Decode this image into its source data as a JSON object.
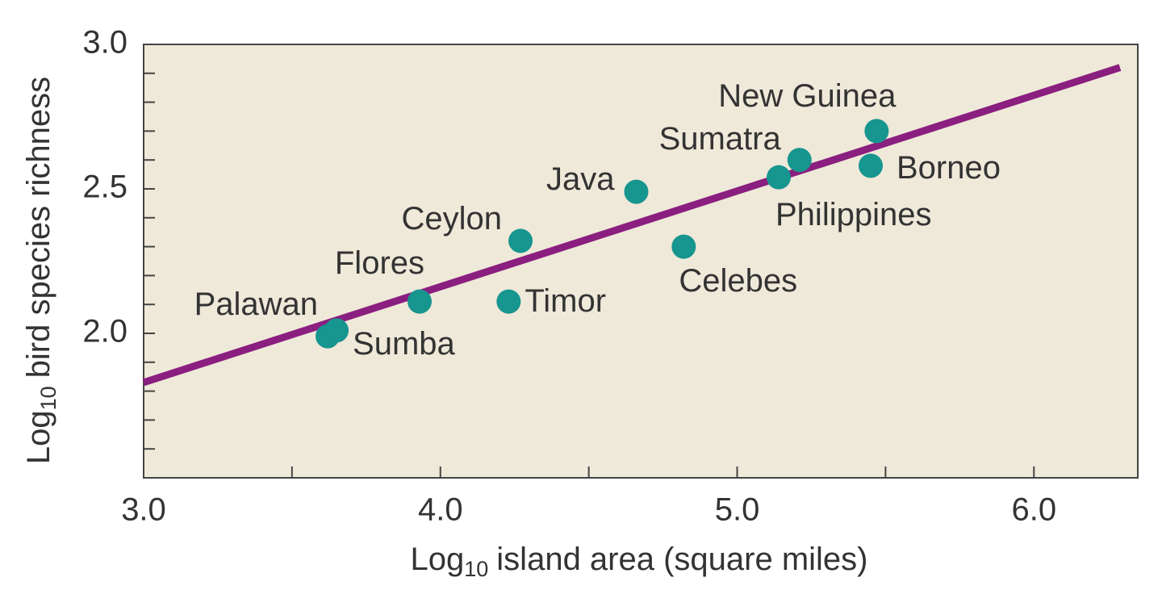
{
  "chart_data": {
    "type": "scatter",
    "xlabel": {
      "prefix": "Log",
      "sub": "10",
      "rest": "island area (square miles)"
    },
    "ylabel": {
      "prefix": "Log",
      "sub": "10",
      "rest": "bird species richness"
    },
    "labels": [
      "Palawan",
      "Sumba",
      "Flores",
      "Timor",
      "Ceylon",
      "Java",
      "Celebes",
      "Philippines",
      "Sumatra",
      "Borneo",
      "New Guinea"
    ],
    "x": [
      3.62,
      3.65,
      3.93,
      4.23,
      4.27,
      4.66,
      4.82,
      5.14,
      5.21,
      5.45,
      5.47
    ],
    "y": [
      1.99,
      2.01,
      2.11,
      2.11,
      2.32,
      2.49,
      2.3,
      2.54,
      2.6,
      2.58,
      2.7
    ],
    "color": "#17958f",
    "fit": {
      "x": [
        3.0,
        6.29
      ],
      "y": [
        1.83,
        2.92
      ],
      "color": "#8a1f7f"
    },
    "xlim": [
      3.0,
      6.35
    ],
    "ylim": [
      1.5,
      3.0
    ],
    "xticks": [
      {
        "value": 3,
        "label": "3.0"
      },
      {
        "value": 4,
        "label": "4.0"
      },
      {
        "value": 5,
        "label": "5.0"
      },
      {
        "value": 6,
        "label": "6.0"
      }
    ],
    "xminor": [
      3.5,
      4.5,
      5.5
    ],
    "yticks": [
      {
        "value": 2,
        "label": "2.0"
      },
      2.5,
      {
        "value": 3,
        "label": "3.0"
      }
    ],
    "yminor": [
      1.6,
      1.7,
      1.8,
      1.9,
      2.1,
      2.2,
      2.3,
      2.4,
      2.6,
      2.7,
      2.8,
      2.9
    ]
  }
}
